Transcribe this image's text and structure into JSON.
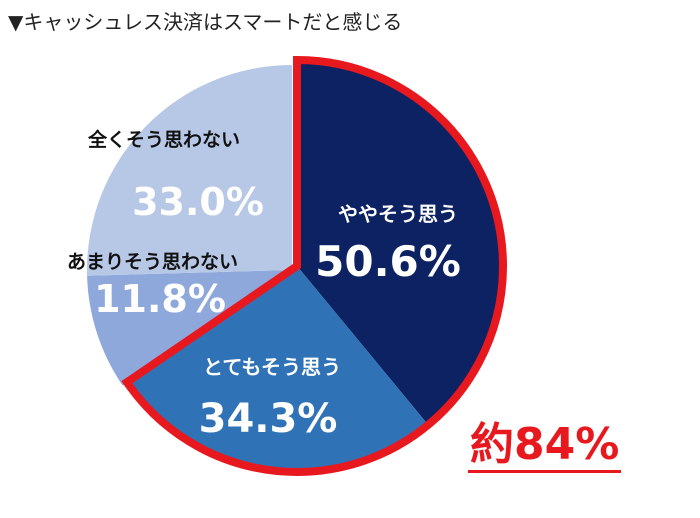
{
  "title": "▼キャッシュレス決済はスマートだと感じる",
  "callout": "約84%",
  "colors": {
    "highlight": "#e8181f"
  },
  "chart_data": {
    "type": "pie",
    "title": "▼キャッシュレス決済はスマートだと感じる",
    "slices": [
      {
        "label": "ややそう思う",
        "value": 50.6,
        "value_label": "50.6%",
        "color": "#0d2263",
        "label_color": "#ffffff",
        "value_color": "#ffffff"
      },
      {
        "label": "とてもそう思う",
        "value": 34.3,
        "value_label": "34.3%",
        "color": "#2f73b6",
        "label_color": "#ffffff",
        "value_color": "#ffffff"
      },
      {
        "label": "あまりそう思わない",
        "value": 11.8,
        "value_label": "11.8%",
        "color": "#8ea8db",
        "label_color": "#111111",
        "value_color": "#ffffff"
      },
      {
        "label": "全くそう思わない",
        "value": 33.0,
        "value_label": "33.0%",
        "color": "#b7c7e6",
        "label_color": "#111111",
        "value_color": "#ffffff"
      }
    ],
    "highlighted": [
      "ややそう思う",
      "とてもそう思う"
    ],
    "legend": "none"
  }
}
